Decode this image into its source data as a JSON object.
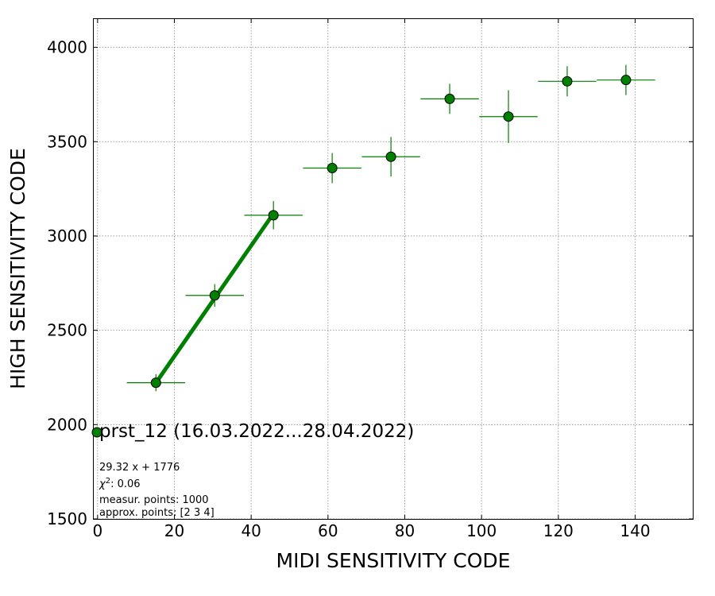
{
  "chart_data": {
    "type": "scatter",
    "xlabel": "MIDI SENSITIVITY CODE",
    "ylabel": "HIGH SENSITIVITY CODE",
    "xlim": [
      -1,
      155
    ],
    "ylim": [
      1500,
      4150
    ],
    "x_ticks": [
      0,
      20,
      40,
      60,
      80,
      100,
      120,
      140
    ],
    "y_ticks": [
      1500,
      2000,
      2500,
      3000,
      3500,
      4000
    ],
    "x_tick_labels": [
      "0",
      "20",
      "40",
      "60",
      "80",
      "100",
      "120",
      "140"
    ],
    "y_tick_labels": [
      "1500",
      "2000",
      "2500",
      "3000",
      "3500",
      "4000"
    ],
    "grid": true,
    "colors": {
      "marker": "#008000",
      "errorbar": "#008000",
      "fit": "#008000",
      "marker_edge": "#000000"
    },
    "series": [
      {
        "name": "prst_12 (16.03.2022...28.04.2022)",
        "points": [
          {
            "x": 15.2,
            "y": 2222,
            "xerr": 7.6,
            "yerr": 45
          },
          {
            "x": 30.5,
            "y": 2685,
            "xerr": 7.6,
            "yerr": 60
          },
          {
            "x": 45.8,
            "y": 3110,
            "xerr": 7.6,
            "yerr": 75
          },
          {
            "x": 61.1,
            "y": 3360,
            "xerr": 7.6,
            "yerr": 80
          },
          {
            "x": 76.4,
            "y": 3420,
            "xerr": 7.6,
            "yerr": 105
          },
          {
            "x": 91.7,
            "y": 3727,
            "xerr": 7.6,
            "yerr": 80
          },
          {
            "x": 107.0,
            "y": 3633,
            "xerr": 7.6,
            "yerr": 140
          },
          {
            "x": 122.3,
            "y": 3820,
            "xerr": 7.6,
            "yerr": 80
          },
          {
            "x": 137.6,
            "y": 3827,
            "xerr": 7.6,
            "yerr": 80
          }
        ]
      }
    ],
    "fit": {
      "x_start": 15.2,
      "x_end": 45.8,
      "slope": 29.32,
      "intercept": 1776
    },
    "legend": {
      "label": "prst_12 (16.03.2022...28.04.2022)",
      "placement": "lower-left",
      "stats": [
        "29.32 x + 1776",
        "χ²: 0.06",
        "measur. points: 1000",
        "approx. points: [2 3 4]"
      ]
    }
  }
}
